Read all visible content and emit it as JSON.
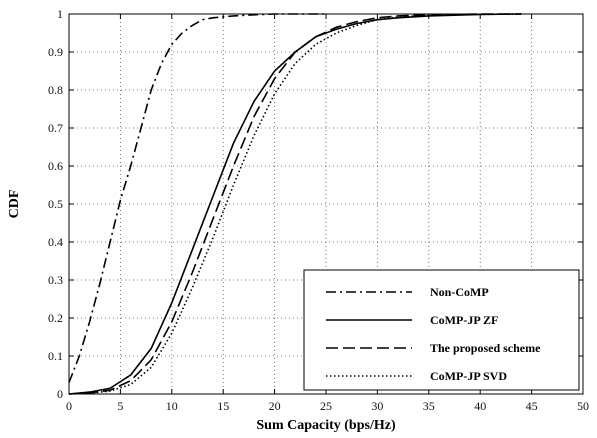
{
  "chart_data": {
    "type": "line",
    "title": "",
    "xlabel": "Sum Capacity (bps/Hz)",
    "ylabel": "CDF",
    "xlim": [
      0,
      50
    ],
    "ylim": [
      0,
      1
    ],
    "xticks": [
      "0",
      "5",
      "10",
      "15",
      "20",
      "25",
      "30",
      "35",
      "40",
      "45",
      "50"
    ],
    "yticks": [
      "0",
      "0.1",
      "0.2",
      "0.3",
      "0.4",
      "0.5",
      "0.6",
      "0.7",
      "0.8",
      "0.9",
      "1"
    ],
    "grid": true,
    "legend_position": "bottom-right",
    "series": [
      {
        "name": "Non-CoMP",
        "style": "dashdot",
        "x": [
          0,
          1,
          2,
          3,
          4,
          5,
          6,
          7,
          8,
          9,
          10,
          11,
          12,
          13,
          14,
          16,
          18,
          20,
          22,
          25
        ],
        "y": [
          0.03,
          0.1,
          0.19,
          0.29,
          0.4,
          0.51,
          0.6,
          0.7,
          0.8,
          0.87,
          0.92,
          0.95,
          0.97,
          0.985,
          0.99,
          0.995,
          0.998,
          1.0,
          1.0,
          1.0
        ]
      },
      {
        "name": "CoMP-JP ZF",
        "style": "solid",
        "x": [
          0,
          2,
          4,
          6,
          8,
          10,
          12,
          14,
          16,
          18,
          20,
          22,
          24,
          26,
          28,
          30,
          32,
          35,
          40,
          44
        ],
        "y": [
          0,
          0.005,
          0.015,
          0.05,
          0.12,
          0.24,
          0.38,
          0.52,
          0.66,
          0.77,
          0.85,
          0.9,
          0.94,
          0.96,
          0.975,
          0.985,
          0.99,
          0.995,
          0.999,
          1.0
        ]
      },
      {
        "name": "The proposed scheme",
        "style": "dashed",
        "x": [
          0,
          2,
          4,
          6,
          8,
          10,
          12,
          14,
          16,
          18,
          20,
          22,
          24,
          26,
          28,
          30,
          32,
          35,
          40,
          44
        ],
        "y": [
          0,
          0.003,
          0.01,
          0.035,
          0.09,
          0.19,
          0.32,
          0.46,
          0.6,
          0.73,
          0.83,
          0.9,
          0.94,
          0.965,
          0.98,
          0.99,
          0.995,
          0.998,
          1.0,
          1.0
        ]
      },
      {
        "name": "CoMP-JP SVD",
        "style": "dotted",
        "x": [
          0,
          2,
          4,
          6,
          8,
          10,
          12,
          14,
          16,
          18,
          20,
          22,
          24,
          26,
          28,
          30,
          32,
          35,
          40,
          44
        ],
        "y": [
          0,
          0.002,
          0.008,
          0.025,
          0.07,
          0.16,
          0.28,
          0.41,
          0.55,
          0.68,
          0.79,
          0.87,
          0.92,
          0.95,
          0.97,
          0.985,
          0.992,
          0.997,
          0.999,
          1.0
        ]
      }
    ]
  }
}
